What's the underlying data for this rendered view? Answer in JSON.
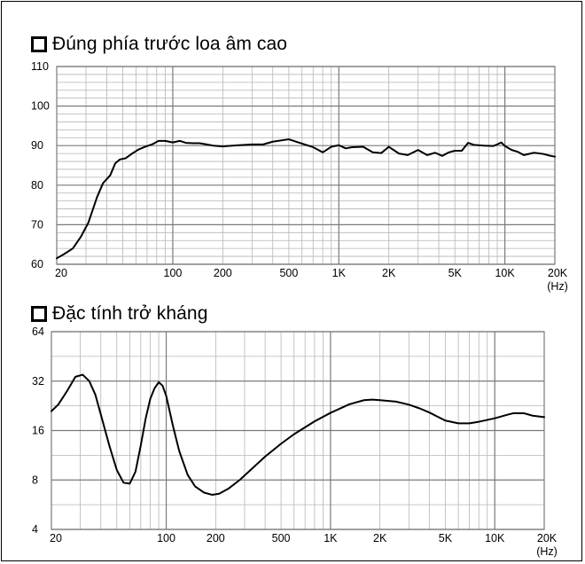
{
  "chart_data": [
    {
      "type": "line",
      "title": "Đúng phía trước loa âm cao",
      "x_scale": "log",
      "xlim": [
        20,
        20000
      ],
      "ylim": [
        60,
        110
      ],
      "x_tick_labels": [
        {
          "value": 20,
          "label": "20"
        },
        {
          "value": 100,
          "label": "100"
        },
        {
          "value": 200,
          "label": "200"
        },
        {
          "value": 500,
          "label": "500"
        },
        {
          "value": 1000,
          "label": "1K"
        },
        {
          "value": 2000,
          "label": "2K"
        },
        {
          "value": 5000,
          "label": "5K"
        },
        {
          "value": 10000,
          "label": "10K"
        },
        {
          "value": 20000,
          "label": "20K"
        }
      ],
      "y_tick_labels": [
        {
          "value": 60,
          "label": "60"
        },
        {
          "value": 70,
          "label": "70"
        },
        {
          "value": 80,
          "label": "80"
        },
        {
          "value": 90,
          "label": "90"
        },
        {
          "value": 100,
          "label": "100"
        },
        {
          "value": 110,
          "label": "110"
        }
      ],
      "x_unit": "(Hz)",
      "grid": true,
      "series": [
        {
          "x": [
            20,
            22,
            25,
            28,
            31,
            35,
            38,
            42,
            45,
            48,
            52,
            57,
            62,
            68,
            75,
            82,
            90,
            100,
            110,
            120,
            132,
            145,
            160,
            175,
            200,
            250,
            300,
            350,
            400,
            500,
            600,
            700,
            800,
            900,
            1000,
            1100,
            1200,
            1400,
            1600,
            1800,
            2000,
            2300,
            2600,
            3000,
            3400,
            3800,
            4200,
            4600,
            5000,
            5500,
            6000,
            6500,
            7500,
            8500,
            9000,
            9500,
            10000,
            11000,
            12000,
            13000,
            15000,
            17000,
            18500,
            20000
          ],
          "y": [
            61.5,
            62.5,
            64,
            67,
            70.5,
            77,
            80.5,
            82.5,
            85.5,
            86.5,
            86.8,
            88,
            89,
            89.7,
            90.3,
            91.2,
            91.2,
            90.8,
            91.2,
            90.7,
            90.6,
            90.6,
            90.3,
            90,
            89.8,
            90.1,
            90.3,
            90.3,
            91,
            91.6,
            90.5,
            89.6,
            88.3,
            89.7,
            90.1,
            89.3,
            89.6,
            89.7,
            88.3,
            88.1,
            89.7,
            88,
            87.6,
            88.9,
            87.6,
            88.2,
            87.4,
            88.3,
            88.7,
            88.7,
            90.7,
            90.2,
            90,
            89.9,
            90.3,
            90.8,
            89.9,
            88.9,
            88.4,
            87.6,
            88.2,
            87.9,
            87.5,
            87.2
          ]
        }
      ]
    },
    {
      "type": "line",
      "title": "Đặc tính trở kháng",
      "x_scale": "log",
      "y_scale": "log",
      "xlim": [
        20,
        20000
      ],
      "ylim": [
        4,
        64
      ],
      "x_tick_labels": [
        {
          "value": 20,
          "label": "20"
        },
        {
          "value": 100,
          "label": "100"
        },
        {
          "value": 200,
          "label": "200"
        },
        {
          "value": 500,
          "label": "500"
        },
        {
          "value": 1000,
          "label": "1K"
        },
        {
          "value": 2000,
          "label": "2K"
        },
        {
          "value": 5000,
          "label": "5K"
        },
        {
          "value": 10000,
          "label": "10K"
        },
        {
          "value": 20000,
          "label": "20K"
        }
      ],
      "y_tick_labels": [
        {
          "value": 4,
          "label": "4"
        },
        {
          "value": 8,
          "label": "8"
        },
        {
          "value": 16,
          "label": "16"
        },
        {
          "value": 32,
          "label": "32"
        },
        {
          "value": 64,
          "label": "64"
        }
      ],
      "x_unit": "(Hz)",
      "grid": true,
      "series": [
        {
          "x": [
            20,
            22,
            25,
            28,
            31,
            34,
            37,
            40,
            45,
            50,
            55,
            60,
            65,
            70,
            75,
            80,
            85,
            90,
            95,
            100,
            110,
            120,
            135,
            150,
            170,
            190,
            210,
            240,
            280,
            330,
            400,
            500,
            600,
            800,
            1000,
            1300,
            1600,
            1800,
            2000,
            2500,
            3000,
            3500,
            4000,
            4500,
            5000,
            6000,
            7000,
            8000,
            10000,
            12000,
            13000,
            15000,
            17000,
            20000
          ],
          "y": [
            21,
            23,
            28,
            34,
            35,
            32,
            26.5,
            20,
            13,
            9.2,
            7.7,
            7.6,
            9,
            13,
            19,
            25,
            29,
            31.5,
            30,
            26,
            17,
            12,
            8.6,
            7.3,
            6.7,
            6.5,
            6.6,
            7.1,
            8,
            9.3,
            11.1,
            13.3,
            15.2,
            18.2,
            20.5,
            23.1,
            24.5,
            24.7,
            24.5,
            24,
            23,
            21.8,
            20.6,
            19.4,
            18.4,
            17.7,
            17.7,
            18.1,
            19,
            20,
            20.4,
            20.4,
            19.7,
            19.3
          ]
        }
      ]
    }
  ]
}
